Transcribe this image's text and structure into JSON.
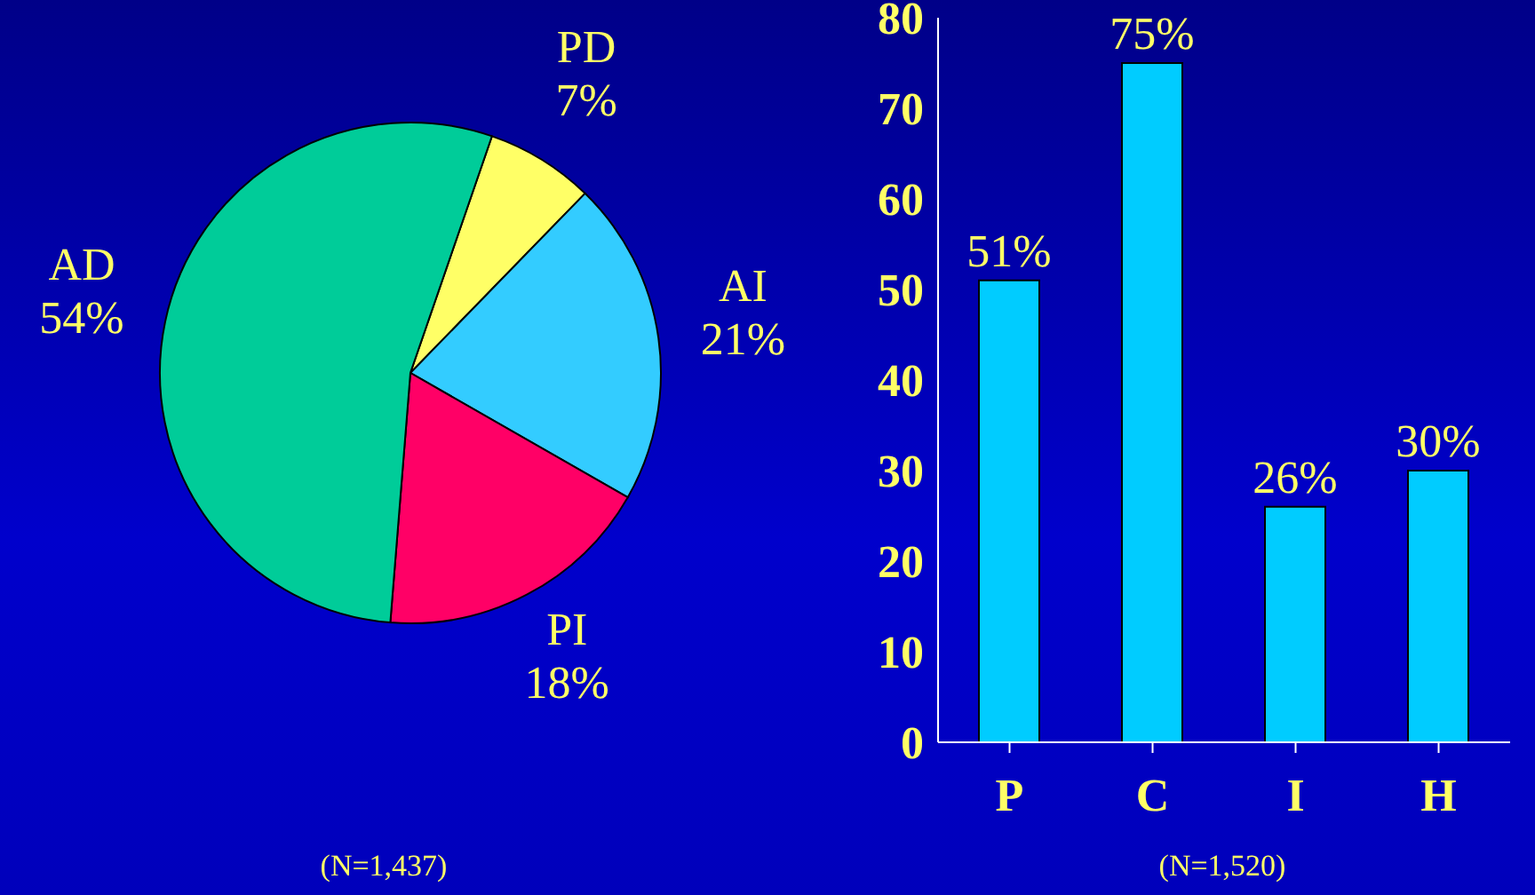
{
  "chart_data": [
    {
      "type": "pie",
      "categories": [
        "PD",
        "AI",
        "PI",
        "AD"
      ],
      "values": [
        7,
        21,
        18,
        54
      ],
      "value_labels": [
        "7%",
        "21%",
        "18%",
        "54%"
      ],
      "colors": [
        "#ffff66",
        "#33ccff",
        "#ff0066",
        "#00cc99"
      ],
      "annotations": [
        "(N=1,437)"
      ]
    },
    {
      "type": "bar",
      "categories": [
        "P",
        "C",
        "I",
        "H"
      ],
      "values": [
        51,
        75,
        26,
        30
      ],
      "value_labels": [
        "51%",
        "75%",
        "26%",
        "30%"
      ],
      "color": "#00ccff",
      "ylim": [
        0,
        80
      ],
      "yticks": [
        0,
        10,
        20,
        30,
        40,
        50,
        60,
        70,
        80
      ],
      "annotations": [
        "(N=1,520)"
      ]
    }
  ]
}
